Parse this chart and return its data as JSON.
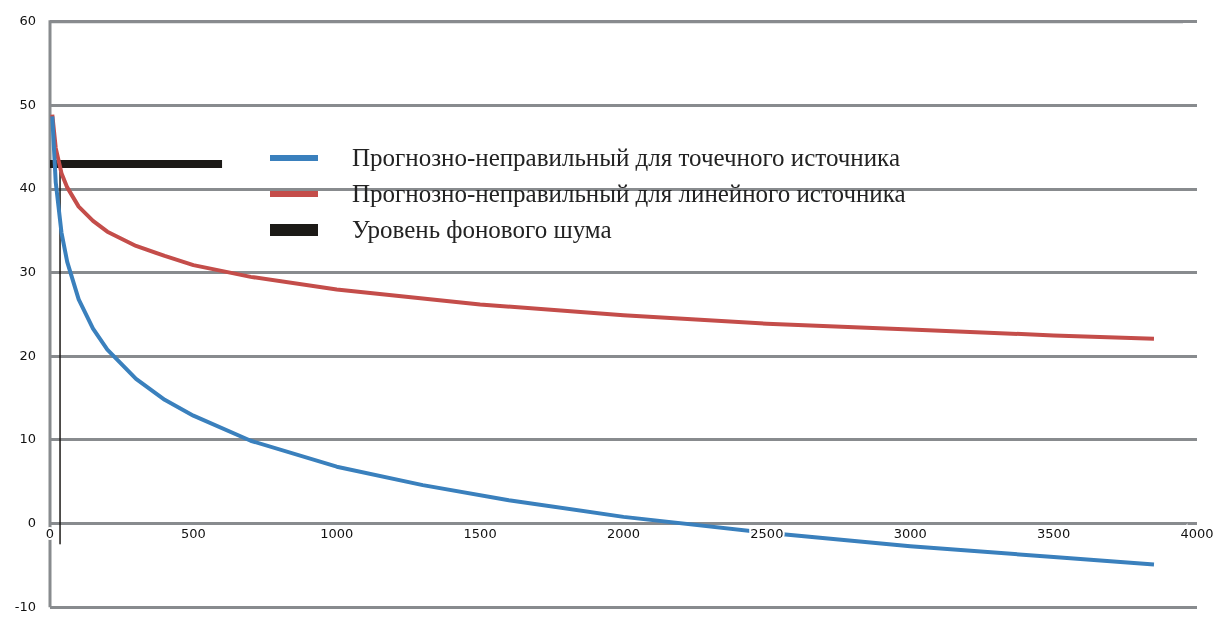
{
  "chart_data": {
    "type": "line",
    "xlim": [
      0,
      4000
    ],
    "xticks": [
      0,
      500,
      1000,
      1500,
      2000,
      2500,
      3000,
      3500,
      4000
    ],
    "ylim": [
      -10,
      60
    ],
    "yticks": [
      -10,
      0,
      10,
      20,
      30,
      40,
      50,
      60
    ],
    "grid": "y",
    "legend": "top",
    "line_style": "solid",
    "series": [
      {
        "name": "Прогнозно-неправильный для точечного источника",
        "color": "#3a80bd",
        "x": [
          8,
          20,
          40,
          60,
          100,
          150,
          200,
          300,
          400,
          500,
          700,
          1000,
          1300,
          1600,
          2000,
          2500,
          3000,
          3500,
          3850
        ],
        "values": [
          48.7,
          40.8,
          34.8,
          31.3,
          26.8,
          23.3,
          20.8,
          17.3,
          14.8,
          12.9,
          9.9,
          6.8,
          4.6,
          2.8,
          0.8,
          -1.1,
          -2.7,
          -4.0,
          -4.9
        ]
      },
      {
        "name": "Прогнозно-неправильный для линейного источника",
        "color": "#c44d4a",
        "x": [
          8,
          20,
          40,
          60,
          100,
          150,
          200,
          300,
          400,
          500,
          700,
          1000,
          1500,
          2000,
          2500,
          3000,
          3500,
          3850
        ],
        "values": [
          48.9,
          44.9,
          41.9,
          40.2,
          37.9,
          36.2,
          34.9,
          33.2,
          32.0,
          30.9,
          29.5,
          28.0,
          26.2,
          24.9,
          23.9,
          23.2,
          22.5,
          22.1
        ]
      },
      {
        "name": "Уровень фонового шума",
        "color": "#1c1a17",
        "x": [
          0,
          600
        ],
        "values": [
          43,
          43
        ]
      },
      {
        "color": "#1c1a17",
        "x": [
          35,
          35
        ],
        "values": [
          42,
          -2.4
        ]
      }
    ]
  }
}
